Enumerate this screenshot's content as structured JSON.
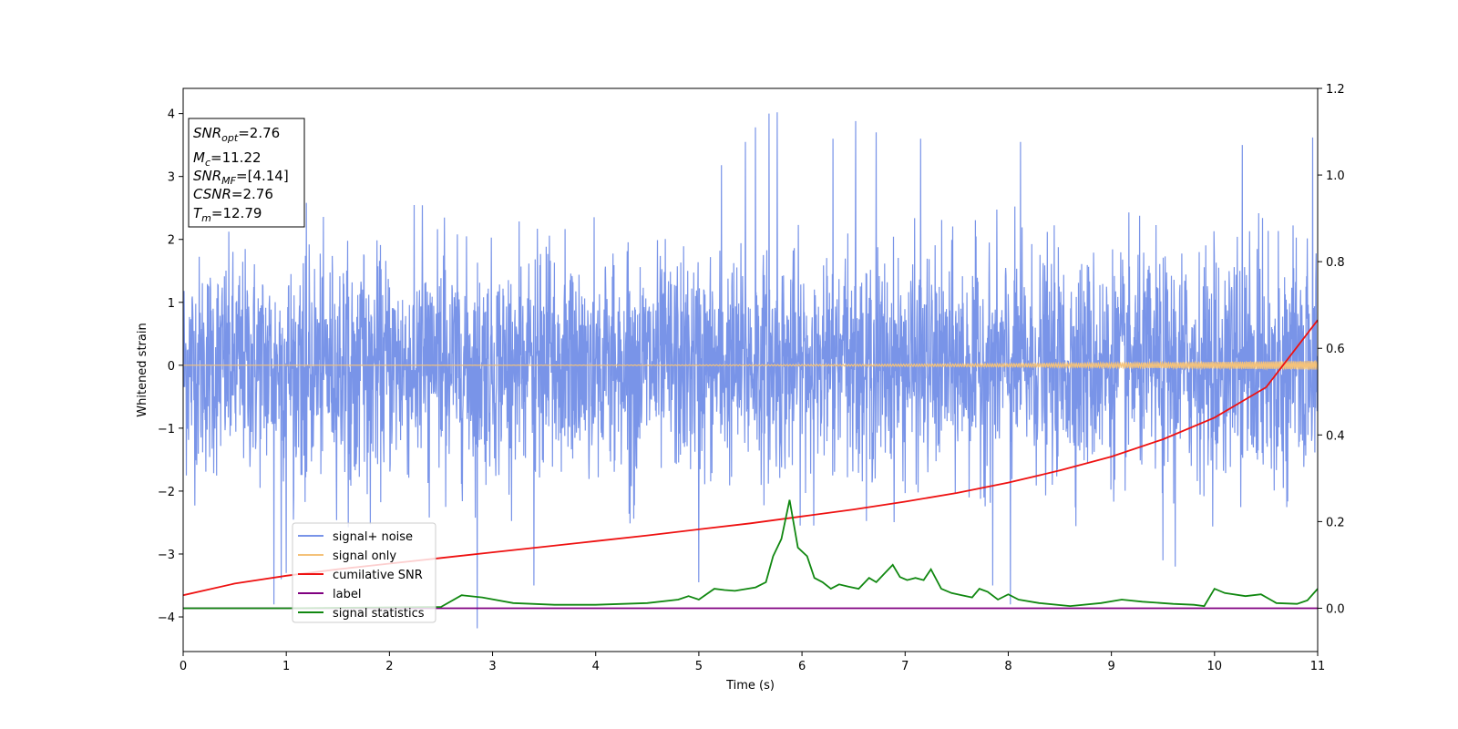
{
  "chart_data": {
    "type": "line",
    "xlabel": "Time (s)",
    "ylabel": "Whitened strain",
    "xlim": [
      0,
      11
    ],
    "ylim_left": [
      -4.55,
      4.4
    ],
    "ylim_right": [
      -0.1,
      1.2
    ],
    "x_ticks": [
      "0",
      "1",
      "2",
      "3",
      "4",
      "5",
      "6",
      "7",
      "8",
      "9",
      "10",
      "11"
    ],
    "y_ticks_left": [
      "−4",
      "−3",
      "−2",
      "−1",
      "0",
      "1",
      "2",
      "3",
      "4"
    ],
    "y_ticks_right": [
      "0.0",
      "0.2",
      "0.4",
      "0.6",
      "0.8",
      "1.0",
      "1.2"
    ],
    "grid": false,
    "legend_position": "lower-left",
    "annotation": {
      "snr_opt": {
        "sym": "SNR",
        "sub": "opt",
        "value": "=2.76"
      },
      "mc": {
        "sym": "M",
        "sub": "c",
        "value": "=11.22"
      },
      "snr_mf": {
        "sym": "SNR",
        "sub": "MF",
        "value": "=[4.14]"
      },
      "csnr": {
        "sym": "CSNR",
        "value": "=2.76"
      },
      "tm": {
        "sym": "T",
        "sub": "m",
        "value": "=12.79"
      }
    },
    "series": [
      {
        "name": "signal+ noise",
        "axis": "left",
        "color": "#7994e8",
        "description_envelope": {
          "typical_range": [
            -2.6,
            2.6
          ],
          "max_peak": 4.02,
          "min_peak": -4.18
        },
        "peaks": [
          [
            0.88,
            -3.8
          ],
          [
            0.95,
            -3.4
          ],
          [
            1.0,
            -3.3
          ],
          [
            2.85,
            -4.18
          ],
          [
            3.4,
            -3.5
          ],
          [
            5.0,
            -3.45
          ],
          [
            5.22,
            3.18
          ],
          [
            5.45,
            3.55
          ],
          [
            5.55,
            3.78
          ],
          [
            5.68,
            4.0
          ],
          [
            5.76,
            4.02
          ],
          [
            6.3,
            3.6
          ],
          [
            6.52,
            3.88
          ],
          [
            6.72,
            3.7
          ],
          [
            7.15,
            3.6
          ],
          [
            7.85,
            -3.5
          ],
          [
            8.02,
            -3.8
          ],
          [
            8.12,
            3.55
          ],
          [
            9.5,
            -3.1
          ],
          [
            9.62,
            -3.2
          ],
          [
            10.27,
            3.5
          ],
          [
            10.95,
            3.62
          ]
        ]
      },
      {
        "name": "signal only",
        "axis": "left",
        "color": "#f4c27a",
        "amplitude_start": 0.0,
        "amplitude_end": 0.07
      },
      {
        "name": "cumilative SNR",
        "axis": "right",
        "color": "#ee1111",
        "x": [
          0,
          0.5,
          1,
          1.5,
          2,
          2.5,
          3,
          3.5,
          4,
          4.5,
          5,
          5.5,
          6,
          6.5,
          7,
          7.5,
          8,
          8.5,
          9,
          9.5,
          10,
          10.5,
          11
        ],
        "values": [
          0.03,
          0.057,
          0.075,
          0.09,
          0.103,
          0.116,
          0.129,
          0.142,
          0.155,
          0.168,
          0.182,
          0.196,
          0.212,
          0.228,
          0.246,
          0.266,
          0.29,
          0.318,
          0.35,
          0.39,
          0.44,
          0.51,
          0.665
        ]
      },
      {
        "name": "label",
        "axis": "right",
        "color": "#800080",
        "x": [
          0,
          11
        ],
        "values": [
          0.0,
          0.0
        ]
      },
      {
        "name": "signal statistics",
        "axis": "right",
        "color": "#118811",
        "x": [
          0,
          1.0,
          2.0,
          2.5,
          2.7,
          2.9,
          3.2,
          3.6,
          4.0,
          4.5,
          4.8,
          4.9,
          5.0,
          5.15,
          5.25,
          5.35,
          5.55,
          5.65,
          5.72,
          5.8,
          5.88,
          5.96,
          6.05,
          6.12,
          6.2,
          6.28,
          6.36,
          6.45,
          6.55,
          6.65,
          6.72,
          6.8,
          6.88,
          6.95,
          7.02,
          7.1,
          7.18,
          7.25,
          7.35,
          7.45,
          7.55,
          7.65,
          7.72,
          7.8,
          7.9,
          8.0,
          8.1,
          8.3,
          8.6,
          8.9,
          9.1,
          9.3,
          9.6,
          9.8,
          9.9,
          10.0,
          10.1,
          10.3,
          10.45,
          10.6,
          10.8,
          10.9,
          11.0
        ],
        "values": [
          0.0,
          0.0,
          0.002,
          0.003,
          0.03,
          0.025,
          0.012,
          0.008,
          0.008,
          0.012,
          0.02,
          0.028,
          0.02,
          0.045,
          0.042,
          0.04,
          0.048,
          0.06,
          0.12,
          0.16,
          0.25,
          0.14,
          0.12,
          0.07,
          0.06,
          0.045,
          0.055,
          0.05,
          0.045,
          0.07,
          0.06,
          0.08,
          0.1,
          0.072,
          0.065,
          0.07,
          0.065,
          0.09,
          0.045,
          0.035,
          0.03,
          0.025,
          0.045,
          0.038,
          0.02,
          0.032,
          0.02,
          0.012,
          0.005,
          0.012,
          0.02,
          0.015,
          0.01,
          0.008,
          0.005,
          0.045,
          0.035,
          0.028,
          0.032,
          0.012,
          0.01,
          0.018,
          0.045
        ]
      }
    ]
  }
}
